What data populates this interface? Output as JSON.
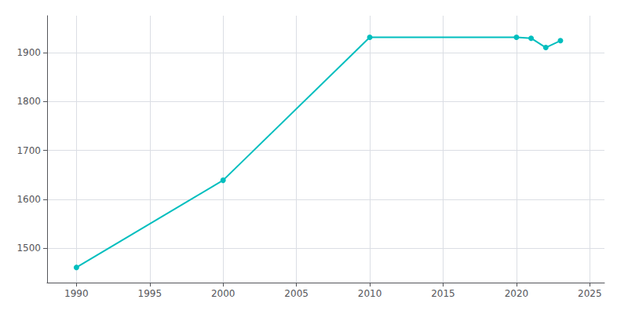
{
  "chart_data": {
    "type": "line",
    "x": [
      1990,
      2000,
      2010,
      2020,
      2021,
      2022,
      2023
    ],
    "values": [
      1461,
      1639,
      1931,
      1931,
      1929,
      1910,
      1924
    ],
    "color": "#00BEBE",
    "marker": "circle",
    "xlim": [
      1988,
      2026
    ],
    "ylim": [
      1430,
      1975
    ],
    "xticks": [
      1990,
      1995,
      2000,
      2005,
      2010,
      2015,
      2020,
      2025
    ],
    "yticks": [
      1500,
      1600,
      1700,
      1800,
      1900
    ],
    "grid": true
  }
}
